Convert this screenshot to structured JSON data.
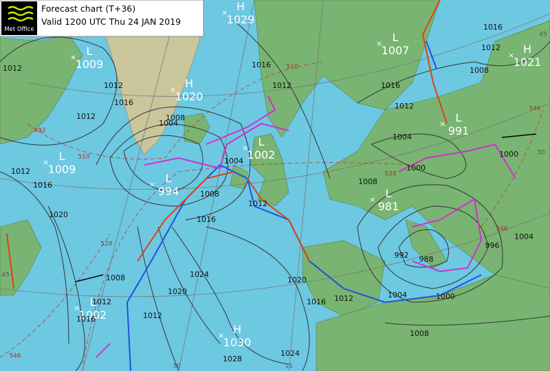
{
  "header": {
    "logo": "Met Office",
    "title": "Forecast chart (T+36)",
    "valid": "Valid 1200 UTC  Thu 24 JAN 2019"
  },
  "pressure_centers": [
    {
      "kind": "H",
      "value": "1029"
    },
    {
      "kind": "L",
      "value": "1009"
    },
    {
      "kind": "H",
      "value": "1020"
    },
    {
      "kind": "L",
      "value": "1009"
    },
    {
      "kind": "L",
      "value": "994"
    },
    {
      "kind": "L",
      "value": "1002"
    },
    {
      "kind": "L",
      "value": "1007"
    },
    {
      "kind": "H",
      "value": "1021"
    },
    {
      "kind": "L",
      "value": "991"
    },
    {
      "kind": "L",
      "value": "981"
    },
    {
      "kind": "L",
      "value": "1002"
    },
    {
      "kind": "H",
      "value": "1030"
    }
  ],
  "isobar_labels": [
    "1012",
    "1012",
    "1016",
    "1012",
    "1016",
    "1012",
    "1016",
    "1012",
    "1008",
    "1016",
    "1012",
    "1004",
    "1000",
    "1008",
    "1004",
    "1000",
    "1012",
    "1008",
    "1016",
    "1020",
    "1016",
    "1012",
    "1024",
    "1020",
    "1008",
    "1012",
    "1016",
    "1012",
    "1020",
    "1016",
    "1012",
    "1004",
    "1000",
    "996",
    "1004",
    "1008",
    "1024",
    "1028",
    "1004",
    "1008",
    "992",
    "988"
  ],
  "thickness_labels": [
    "510",
    "528",
    "528",
    "546",
    "546",
    "510",
    "492",
    "546"
  ],
  "grid_labels": [
    "45",
    "30",
    "30",
    "15",
    "45"
  ]
}
